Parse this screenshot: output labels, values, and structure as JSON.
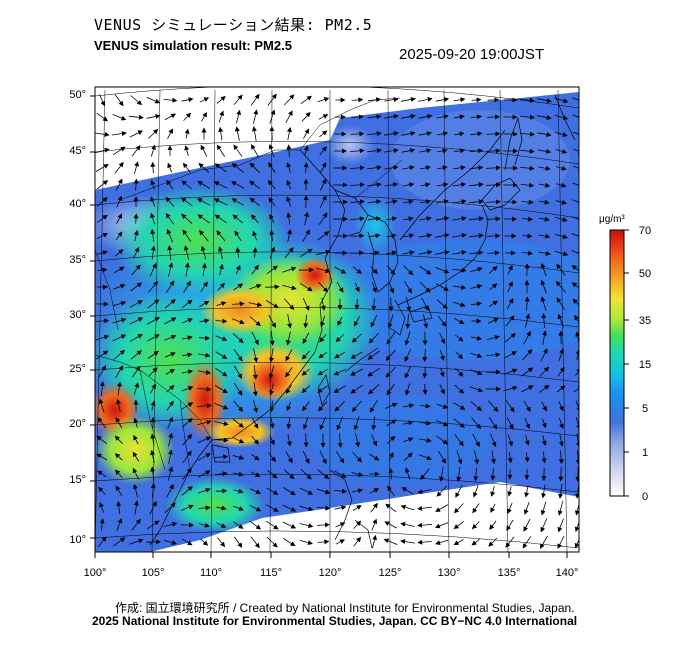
{
  "header": {
    "title_jp": "VENUS シミュレーション結果: PM2.5",
    "title_en": "VENUS simulation result: PM2.5",
    "timestamp": "2025-09-20 19:00JST"
  },
  "map": {
    "lat_ticks": [
      "50°",
      "45°",
      "40°",
      "35°",
      "30°",
      "25°",
      "20°",
      "15°",
      "10°"
    ],
    "lon_ticks": [
      "100°",
      "105°",
      "110°",
      "115°",
      "120°",
      "125°",
      "130°",
      "135°",
      "140°"
    ],
    "lat_range": [
      9,
      50
    ],
    "lon_range": [
      100,
      142
    ]
  },
  "colorbar": {
    "unit_label": "μg/m³",
    "tick_labels": [
      "70",
      "50",
      "35",
      "15",
      "5",
      "1",
      "0"
    ],
    "colors": [
      "#ffffff",
      "#d9dcf2",
      "#8ea8e4",
      "#3f73e0",
      "#1a8ff0",
      "#16c3e6",
      "#1fd9a8",
      "#3fe05a",
      "#a6e83a",
      "#f0e632",
      "#f5b325",
      "#f07a1e",
      "#e83a18",
      "#c81010"
    ]
  },
  "footer": {
    "credit_line1": "作成: 国立環境研究所 / Created by National Institute for Environmental Studies, Japan.",
    "credit_line2": "2025 National Institute for Environmental Studies, Japan. CC BY−NC 4.0 International"
  }
}
